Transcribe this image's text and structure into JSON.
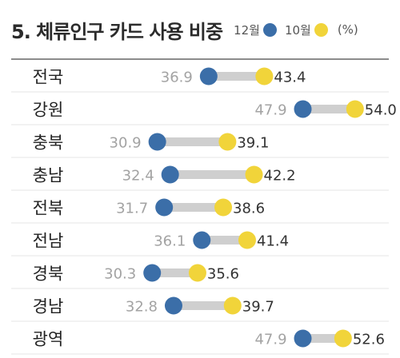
{
  "chart_data": {
    "type": "dumbbell",
    "title": "5. 체류인구 카드 사용 비중",
    "unit": "(%)",
    "series": [
      {
        "name": "12월",
        "color": "#3b6ea8"
      },
      {
        "name": "10월",
        "color": "#f1d43a"
      }
    ],
    "categories": [
      "전국",
      "강원",
      "충북",
      "충남",
      "전북",
      "전남",
      "경북",
      "경남",
      "광역"
    ],
    "dec": [
      36.9,
      47.9,
      30.9,
      32.4,
      31.7,
      36.1,
      30.3,
      32.8,
      47.9
    ],
    "oct": [
      43.4,
      54.0,
      39.1,
      42.2,
      38.6,
      41.4,
      35.6,
      39.7,
      52.6
    ],
    "dec_labels": [
      "36.9",
      "47.9",
      "30.9",
      "32.4",
      "31.7",
      "36.1",
      "30.3",
      "32.8",
      "47.9"
    ],
    "oct_labels": [
      "43.4",
      "54.0",
      "39.1",
      "42.2",
      "38.6",
      "41.4",
      "35.6",
      "39.7",
      "52.6"
    ]
  }
}
